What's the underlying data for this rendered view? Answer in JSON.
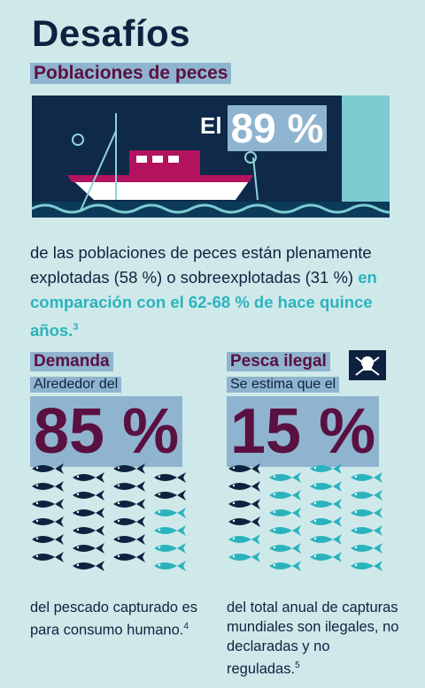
{
  "title": "Desafíos",
  "subtitle": "Poblaciones de peces",
  "hero": {
    "prefix": "El",
    "value": "89 %"
  },
  "paragraph": {
    "text": "de las poblaciones de peces están plenamente explotadas (58 %) o sobreexplotadas (31 %) ",
    "highlight": "en comparación con el 62-68 % de hace quince años.",
    "footnote": "3"
  },
  "demanda": {
    "heading": "Demanda",
    "lead": "Alrededor del",
    "value": "85 %",
    "percent": 85,
    "caption": "del pescado capturado es para consumo humano.",
    "footnote": "4"
  },
  "pesca": {
    "heading": "Pesca ilegal",
    "lead": "Se estima que el",
    "value": "15 %",
    "percent": 15,
    "caption": "del total anual de capturas mundiales son ilegales, no declaradas y no reguladas.",
    "footnote": "5"
  },
  "colors": {
    "navy": "#0e2240",
    "teal": "#2bb3bd",
    "purple": "#5a1040",
    "highlight": "#8fb4cf",
    "bg": "#cfe9ea"
  }
}
